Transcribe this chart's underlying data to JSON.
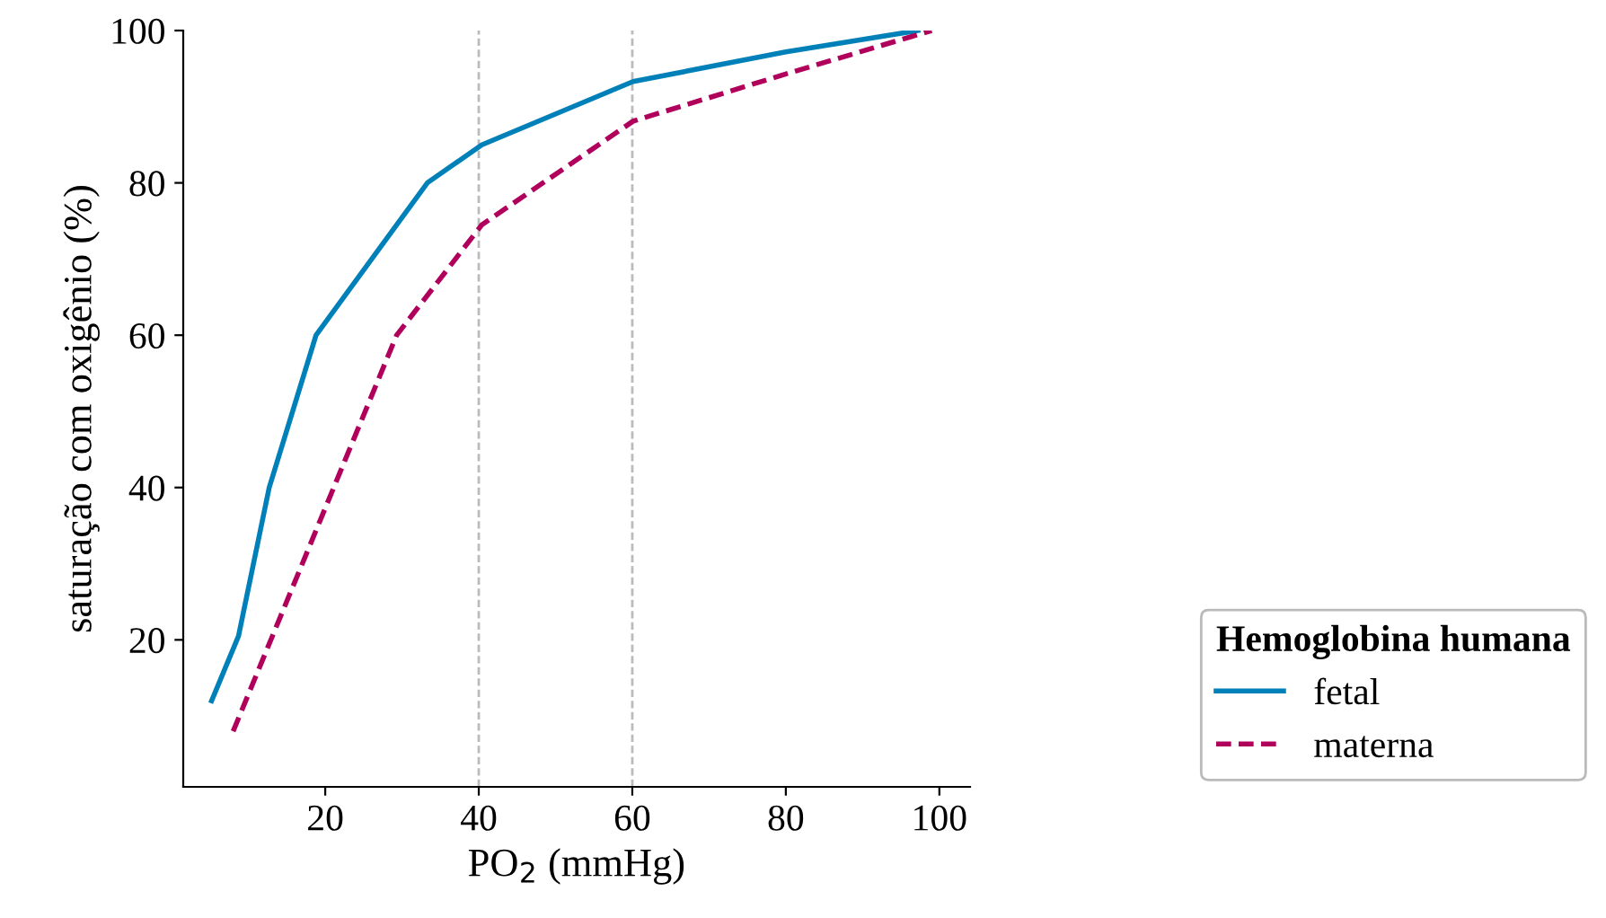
{
  "chart_data": {
    "type": "line",
    "xlabel": "PO$_{2}$ (mmHg)",
    "ylabel": "saturação com oxigênio (%)",
    "legend_title": "Hemoglobina humana",
    "series": [
      {
        "name": "fetal",
        "color": "#0080b8",
        "line_style": "solid",
        "x": [
          5.2,
          8.7,
          12.7,
          18.8,
          33.3,
          40.4,
          60.1,
          80,
          97.2
        ],
        "values": [
          12,
          20.5,
          40,
          60,
          80,
          85,
          93.3,
          97.2,
          100
        ]
      },
      {
        "name": "materna",
        "color": "#b0005c",
        "line_style": "dashed",
        "x": [
          8,
          29.3,
          40.4,
          60.1,
          80,
          99
        ],
        "values": [
          8,
          60,
          74.5,
          88.1,
          94.3,
          100
        ]
      }
    ],
    "xlim": [
      1.5,
      104
    ],
    "ylim": [
      0.7,
      100
    ],
    "xticks": [
      20,
      40,
      60,
      80,
      100
    ],
    "yticks": [
      20,
      40,
      60,
      80,
      100
    ],
    "ref_lines": [
      {
        "axis": "x",
        "value": 40,
        "color": "#bbbbbb",
        "line_style": "dashed"
      },
      {
        "axis": "x",
        "value": 60,
        "color": "#bbbbbb",
        "line_style": "dashed"
      }
    ],
    "grid": false,
    "legend": "bottom right",
    "marker": "none"
  }
}
